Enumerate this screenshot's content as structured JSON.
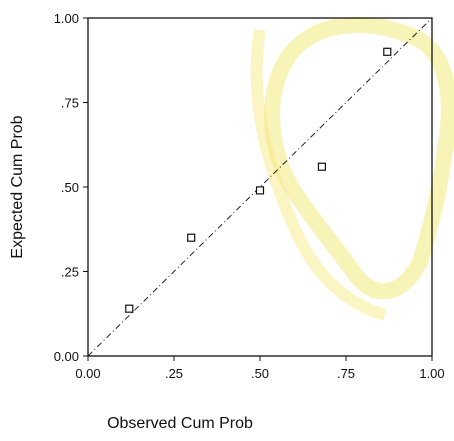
{
  "chart_data": {
    "type": "scatter",
    "title": "",
    "xlabel": "Observed Cum Prob",
    "ylabel": "Expected Cum Prob",
    "xlim": [
      0,
      1
    ],
    "ylim": [
      0,
      1
    ],
    "x_ticks": [
      0,
      0.25,
      0.5,
      0.75,
      1
    ],
    "y_ticks": [
      0,
      0.25,
      0.5,
      0.75,
      1
    ],
    "x_tick_labels": [
      "0.00",
      ".25",
      ".50",
      ".75",
      "1.00"
    ],
    "y_tick_labels": [
      "0.00",
      ".25",
      ".50",
      ".75",
      "1.00"
    ],
    "grid": false,
    "series": [
      {
        "x": [
          0.12,
          0.3,
          0.5,
          0.68,
          0.87
        ],
        "y": [
          0.14,
          0.35,
          0.49,
          0.56,
          0.9
        ],
        "marker": "square-open"
      }
    ],
    "reference_line": {
      "x": [
        0,
        1
      ],
      "y": [
        0,
        1
      ],
      "style": "dashed"
    }
  },
  "colors": {
    "axis": "#111111",
    "marker": "#111111",
    "line": "#222222",
    "watermark": "#f3e97a"
  }
}
